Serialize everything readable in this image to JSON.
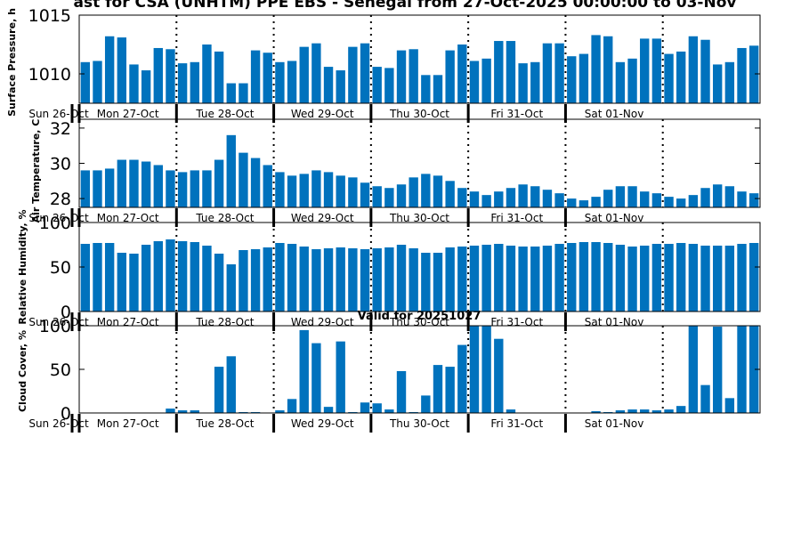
{
  "figure": {
    "title": "ast for CSA (UNHTM) PPE EBS  - Senegal from 27-Oct-2025 00:00:00 to 03-Nov",
    "valid_label": "Valid for 20251027"
  },
  "colors": {
    "bar": "#0072bd",
    "axes": "#000000",
    "background": "#ffffff"
  },
  "chart_data": [
    {
      "type": "bar",
      "ylabel": "Surface Pressure, h",
      "ylim": [
        1007.5,
        1015
      ],
      "yticks": [
        1010,
        1015
      ],
      "x_labels": [
        "Sun 26-Oct",
        "Mon 27-Oct",
        "Tue 28-Oct",
        "Wed 29-Oct",
        "Thu 30-Oct",
        "Fri 31-Oct",
        "Sat 01-Nov"
      ],
      "values": [
        1011.0,
        1011.1,
        1013.2,
        1013.1,
        1010.8,
        1010.3,
        1012.2,
        1012.1,
        1010.9,
        1011.0,
        1012.5,
        1011.9,
        1009.2,
        1009.2,
        1012.0,
        1011.8,
        1011.0,
        1011.1,
        1012.3,
        1012.6,
        1010.6,
        1010.3,
        1012.3,
        1012.6,
        1010.6,
        1010.5,
        1012.0,
        1012.1,
        1009.9,
        1009.9,
        1012.0,
        1012.5,
        1011.1,
        1011.3,
        1012.8,
        1012.8,
        1010.9,
        1011.0,
        1012.6,
        1012.6,
        1011.5,
        1011.7,
        1013.3,
        1013.2,
        1011.0,
        1011.3,
        1013.0,
        1013.0,
        1011.7,
        1011.9,
        1013.2,
        1012.9,
        1010.8,
        1011.0,
        1012.2,
        1012.4
      ]
    },
    {
      "type": "bar",
      "ylabel": "Air Temperature, C",
      "ylim": [
        27.5,
        32.5
      ],
      "yticks": [
        28,
        30,
        32
      ],
      "x_labels": [
        "Sun 26-Oct",
        "Mon 27-Oct",
        "Tue 28-Oct",
        "Wed 29-Oct",
        "Thu 30-Oct",
        "Fri 31-Oct",
        "Sat 01-Nov"
      ],
      "values": [
        29.6,
        29.6,
        29.7,
        30.2,
        30.2,
        30.1,
        29.9,
        29.6,
        29.5,
        29.6,
        29.6,
        30.2,
        31.6,
        30.6,
        30.3,
        29.9,
        29.5,
        29.3,
        29.4,
        29.6,
        29.5,
        29.3,
        29.2,
        28.9,
        28.7,
        28.6,
        28.8,
        29.2,
        29.4,
        29.3,
        29.0,
        28.6,
        28.4,
        28.2,
        28.4,
        28.6,
        28.8,
        28.7,
        28.5,
        28.3,
        28.0,
        27.9,
        28.1,
        28.5,
        28.7,
        28.7,
        28.4,
        28.3,
        28.1,
        28.0,
        28.2,
        28.6,
        28.8,
        28.7,
        28.4,
        28.3
      ]
    },
    {
      "type": "bar",
      "ylabel": "Relative Humidity, %",
      "ylim": [
        0,
        100
      ],
      "yticks": [
        0,
        50,
        100
      ],
      "x_labels": [
        "Sun 26-Oct",
        "Mon 27-Oct",
        "Tue 28-Oct",
        "Wed 29-Oct",
        "Thu 30-Oct",
        "Fri 31-Oct",
        "Sat 01-Nov"
      ],
      "values": [
        76,
        77,
        77,
        66,
        65,
        75,
        79,
        81,
        79,
        78,
        74,
        65,
        53,
        69,
        70,
        72,
        77,
        76,
        73,
        70,
        71,
        72,
        71,
        70,
        71,
        72,
        75,
        71,
        66,
        66,
        72,
        73,
        74,
        75,
        76,
        74,
        73,
        73,
        74,
        76,
        77,
        78,
        78,
        77,
        75,
        73,
        74,
        76,
        76,
        77,
        76,
        74,
        74,
        74,
        76,
        77
      ]
    },
    {
      "type": "bar",
      "ylabel": "Cloud Cover, %",
      "ylim": [
        0,
        100
      ],
      "yticks": [
        0,
        50,
        100
      ],
      "x_labels": [
        "Sun 26-Oct",
        "Mon 27-Oct",
        "Tue 28-Oct",
        "Wed 29-Oct",
        "Thu 30-Oct",
        "Fri 31-Oct",
        "Sat 01-Nov"
      ],
      "values": [
        0,
        0,
        0,
        0,
        0,
        0,
        0,
        5,
        3,
        3,
        0,
        53,
        65,
        1,
        1,
        0,
        3,
        16,
        95,
        80,
        7,
        82,
        1,
        12,
        11,
        4,
        48,
        1,
        20,
        55,
        53,
        78,
        100,
        100,
        85,
        4,
        0,
        0,
        0,
        0,
        0,
        0,
        2,
        1,
        3,
        4,
        4,
        3,
        4,
        8,
        100,
        32,
        99,
        17,
        100,
        100
      ]
    }
  ]
}
